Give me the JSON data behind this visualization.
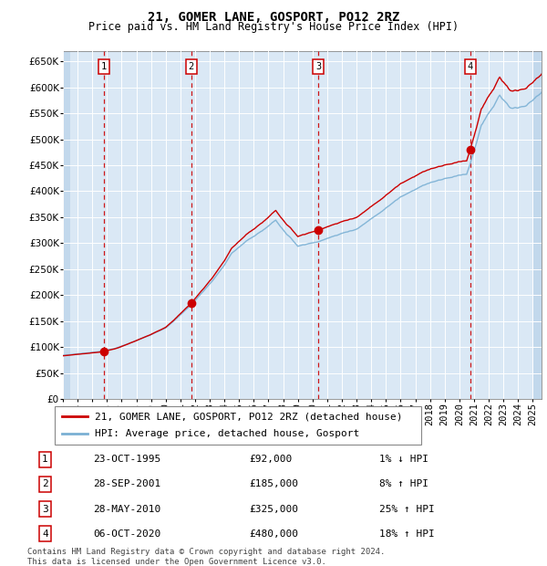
{
  "title": "21, GOMER LANE, GOSPORT, PO12 2RZ",
  "subtitle": "Price paid vs. HM Land Registry's House Price Index (HPI)",
  "ylim": [
    0,
    670000
  ],
  "yticks": [
    0,
    50000,
    100000,
    150000,
    200000,
    250000,
    300000,
    350000,
    400000,
    450000,
    500000,
    550000,
    600000,
    650000
  ],
  "xlim_start": 1993.0,
  "xlim_end": 2025.6,
  "plot_bg": "#dae8f5",
  "hatch_color": "#c2d8ec",
  "grid_color": "#ffffff",
  "red_line_color": "#cc0000",
  "blue_line_color": "#7ab0d4",
  "sale_marker_color": "#cc0000",
  "dashed_line_color": "#cc0000",
  "legend_label_red": "21, GOMER LANE, GOSPORT, PO12 2RZ (detached house)",
  "legend_label_blue": "HPI: Average price, detached house, Gosport",
  "sales": [
    {
      "num": 1,
      "date": "23-OCT-1995",
      "year": 1995.81,
      "price": 92000,
      "pct": "1%",
      "dir": "↓"
    },
    {
      "num": 2,
      "date": "28-SEP-2001",
      "year": 2001.74,
      "price": 185000,
      "pct": "8%",
      "dir": "↑"
    },
    {
      "num": 3,
      "date": "28-MAY-2010",
      "year": 2010.41,
      "price": 325000,
      "pct": "25%",
      "dir": "↑"
    },
    {
      "num": 4,
      "date": "06-OCT-2020",
      "year": 2020.76,
      "price": 480000,
      "pct": "18%",
      "dir": "↑"
    }
  ],
  "footer": "Contains HM Land Registry data © Crown copyright and database right 2024.\nThis data is licensed under the Open Government Licence v3.0.",
  "title_fontsize": 10,
  "subtitle_fontsize": 8.5,
  "tick_fontsize": 7.5,
  "legend_fontsize": 8,
  "footer_fontsize": 6.5,
  "table_fontsize": 8
}
